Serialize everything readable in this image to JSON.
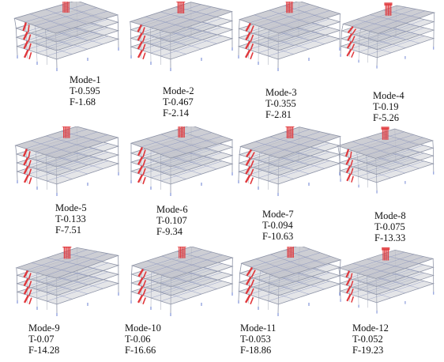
{
  "figure": {
    "colors": {
      "floor_fill": "#c4c6cc",
      "frame_line": "#8d93a6",
      "grid_line": "#7884b8",
      "stair": "#e0383c",
      "support": "#6a7fd0"
    },
    "modes": [
      {
        "mode": "Mode-1",
        "period": "T-0.595",
        "frequency": "F-1.68",
        "mode_no": 1,
        "period_s": 0.595,
        "frequency_hz": 1.68
      },
      {
        "mode": "Mode-2",
        "period": "T-0.467",
        "frequency": "F-2.14",
        "mode_no": 2,
        "period_s": 0.467,
        "frequency_hz": 2.14
      },
      {
        "mode": "Mode-3",
        "period": "T-0.355",
        "frequency": "F-2.81",
        "mode_no": 3,
        "period_s": 0.355,
        "frequency_hz": 2.81
      },
      {
        "mode": "Mode-4",
        "period": "T-0.19",
        "frequency": "F-5.26",
        "mode_no": 4,
        "period_s": 0.19,
        "frequency_hz": 5.26
      },
      {
        "mode": "Mode-5",
        "period": "T-0.133",
        "frequency": "F-7.51",
        "mode_no": 5,
        "period_s": 0.133,
        "frequency_hz": 7.51
      },
      {
        "mode": "Mode-6",
        "period": "T-0.107",
        "frequency": "F-9.34",
        "mode_no": 6,
        "period_s": 0.107,
        "frequency_hz": 9.34
      },
      {
        "mode": "Mode-7",
        "period": "T-0.094",
        "frequency": "F-10.63",
        "mode_no": 7,
        "period_s": 0.094,
        "frequency_hz": 10.63
      },
      {
        "mode": "Mode-8",
        "period": "T-0.075",
        "frequency": "F-13.33",
        "mode_no": 8,
        "period_s": 0.075,
        "frequency_hz": 13.33
      },
      {
        "mode": "Mode-9",
        "period": "T-0.07",
        "frequency": "F-14.28",
        "mode_no": 9,
        "period_s": 0.07,
        "frequency_hz": 14.28
      },
      {
        "mode": "Mode-10",
        "period": "T-0.06",
        "frequency": "F-16.66",
        "mode_no": 10,
        "period_s": 0.06,
        "frequency_hz": 16.66
      },
      {
        "mode": "Mode-11",
        "period": "T-0.053",
        "frequency": "F-18.86",
        "mode_no": 11,
        "period_s": 0.053,
        "frequency_hz": 18.86
      },
      {
        "mode": "Mode-12",
        "period": "T-0.052",
        "frequency": "F-19.23",
        "mode_no": 12,
        "period_s": 0.052,
        "frequency_hz": 19.23
      }
    ]
  }
}
